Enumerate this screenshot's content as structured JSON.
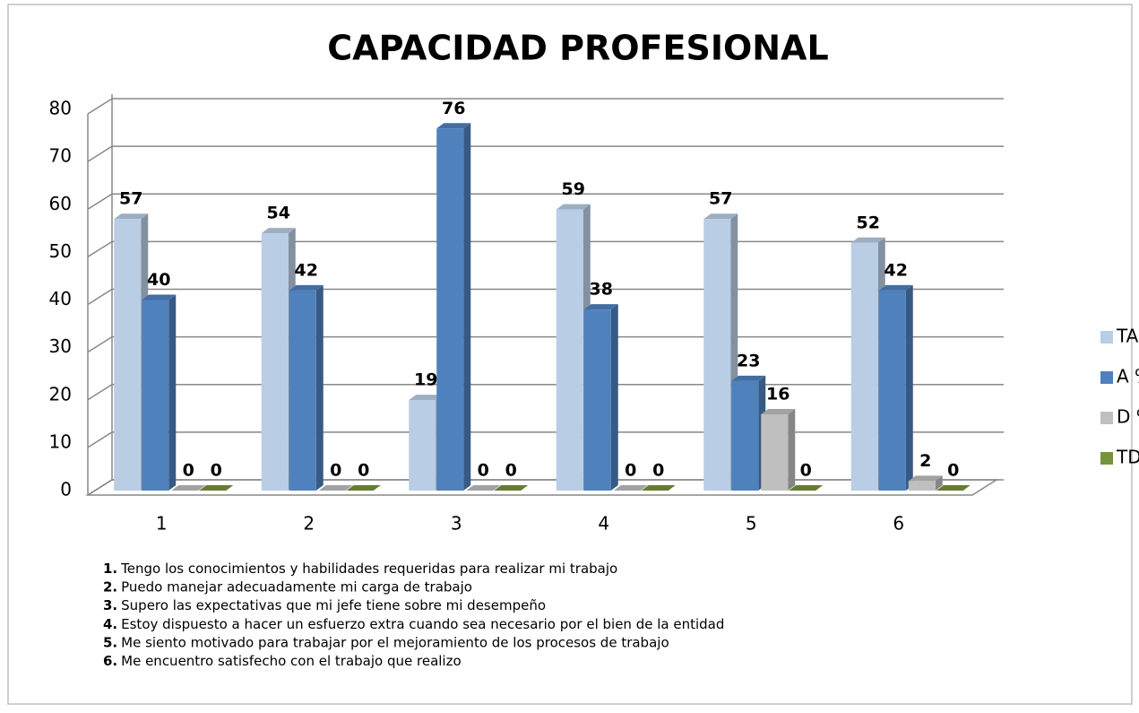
{
  "chart_data": {
    "type": "bar3d",
    "title": "CAPACIDAD PROFESIONAL",
    "categories": [
      "1",
      "2",
      "3",
      "4",
      "5",
      "6"
    ],
    "series": [
      {
        "name": "TA %",
        "color": "#b9cde5",
        "values": [
          57,
          54,
          19,
          59,
          57,
          52
        ]
      },
      {
        "name": "A %",
        "color": "#4f81bd",
        "values": [
          40,
          42,
          76,
          38,
          23,
          42
        ]
      },
      {
        "name": "D %",
        "color": "#bfbfbf",
        "values": [
          0,
          0,
          0,
          0,
          16,
          2
        ]
      },
      {
        "name": "TD %",
        "color": "#77933c",
        "values": [
          0,
          0,
          0,
          0,
          0,
          0
        ]
      }
    ],
    "ylim": [
      0,
      80
    ],
    "yticks": [
      0,
      10,
      20,
      30,
      40,
      50,
      60,
      70,
      80
    ],
    "grid": true,
    "legend": "right",
    "notes": [
      {
        "label": "1.",
        "text": "Tengo los conocimientos y habilidades requeridas para realizar mi trabajo"
      },
      {
        "label": "2.",
        "text": "Puedo manejar adecuadamente mi carga de trabajo"
      },
      {
        "label": "3.",
        "text": "Supero las expectativas que mi jefe tiene sobre mi desempeño"
      },
      {
        "label": "4.",
        "text": "Estoy dispuesto a hacer un esfuerzo extra cuando sea necesario por el bien de la entidad"
      },
      {
        "label": "5.",
        "text": "Me siento motivado para trabajar por el mejoramiento de los procesos de trabajo"
      },
      {
        "label": "6.",
        "text": "Me encuentro satisfecho con el trabajo que realizo"
      }
    ]
  }
}
